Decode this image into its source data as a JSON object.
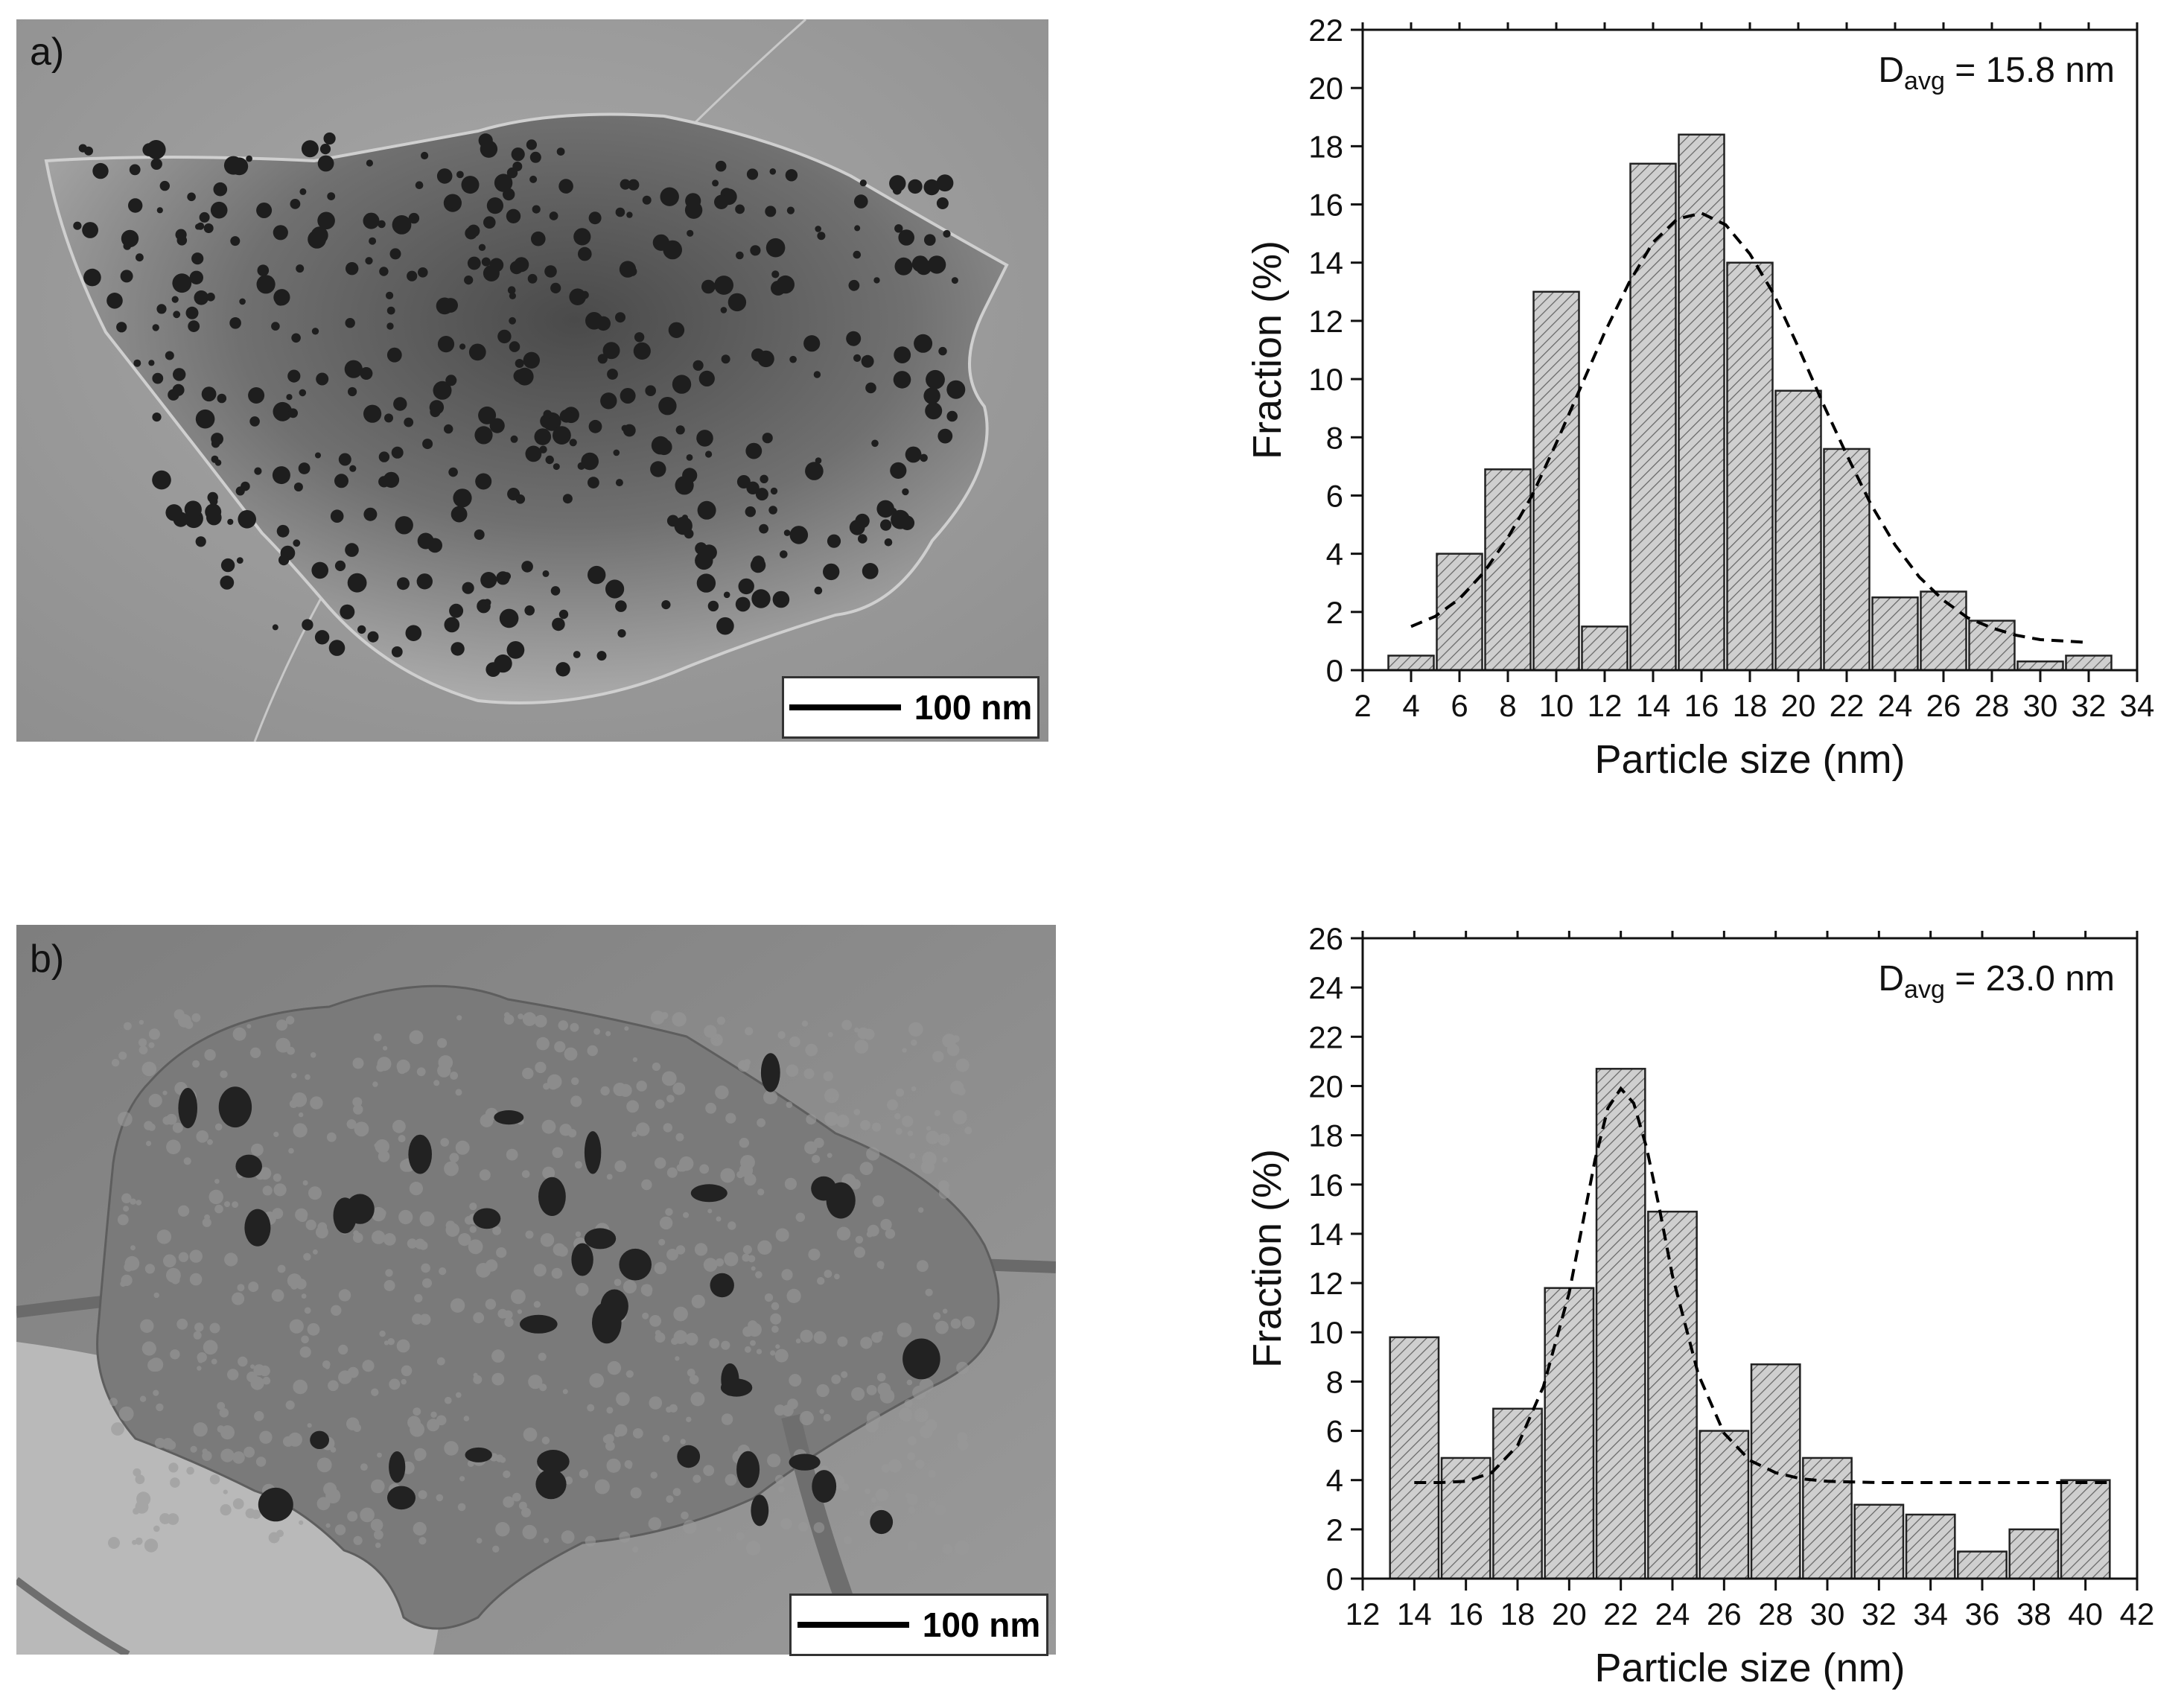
{
  "panels": [
    {
      "label": "a)",
      "scale_bar": "100 nm",
      "annotation": {
        "main": "D",
        "sub": "avg",
        "rest": " = 15.8 nm"
      }
    },
    {
      "label": "b)",
      "scale_bar": "100 nm",
      "annotation": {
        "main": "D",
        "sub": "avg",
        "rest": " = 23.0 nm"
      }
    }
  ],
  "colors": {
    "bar_fill": "#cfcfcf",
    "bar_hatch": "#666666",
    "axis": "#111111",
    "fit_line": "#000000"
  },
  "chart_data": [
    {
      "type": "bar",
      "xlabel": "Particle size (nm)",
      "ylabel": "Fraction (%)",
      "xlim": [
        2,
        34
      ],
      "ylim": [
        0,
        22
      ],
      "xticks": [
        2,
        4,
        6,
        8,
        10,
        12,
        14,
        16,
        18,
        20,
        22,
        24,
        26,
        28,
        30,
        32,
        34
      ],
      "yticks": [
        0,
        2,
        4,
        6,
        8,
        10,
        12,
        14,
        16,
        18,
        20,
        22
      ],
      "bin_width": 2,
      "bin_centers": [
        4,
        6,
        8,
        10,
        12,
        14,
        16,
        18,
        20,
        22,
        24,
        26,
        28,
        30,
        32
      ],
      "values": [
        0.5,
        4.0,
        6.9,
        13.0,
        1.5,
        17.4,
        18.4,
        14.0,
        9.6,
        7.6,
        2.5,
        2.7,
        1.7,
        0.3,
        0.5
      ],
      "fit_curve": {
        "type": "gaussian-dashed",
        "x": [
          4,
          5,
          6,
          7,
          8,
          9,
          10,
          11,
          12,
          13,
          14,
          15,
          16,
          17,
          18,
          19,
          20,
          21,
          22,
          23,
          24,
          25,
          26,
          27,
          28,
          29,
          30,
          31,
          32
        ],
        "y": [
          1.5,
          1.85,
          2.45,
          3.35,
          4.55,
          6.0,
          7.8,
          9.7,
          11.6,
          13.3,
          14.7,
          15.5,
          15.7,
          15.3,
          14.3,
          12.9,
          11.1,
          9.2,
          7.4,
          5.7,
          4.3,
          3.2,
          2.4,
          1.8,
          1.45,
          1.2,
          1.05,
          1.0,
          0.95
        ]
      },
      "grid": false
    },
    {
      "type": "bar",
      "xlabel": "Particle size (nm)",
      "ylabel": "Fraction (%)",
      "xlim": [
        12,
        42
      ],
      "ylim": [
        0,
        26
      ],
      "xticks": [
        12,
        14,
        16,
        18,
        20,
        22,
        24,
        26,
        28,
        30,
        32,
        34,
        36,
        38,
        40,
        42
      ],
      "yticks": [
        0,
        2,
        4,
        6,
        8,
        10,
        12,
        14,
        16,
        18,
        20,
        22,
        24,
        26
      ],
      "bin_width": 2,
      "bin_centers": [
        14,
        16,
        18,
        20,
        22,
        24,
        26,
        28,
        30,
        32,
        34,
        36,
        38,
        40
      ],
      "values": [
        9.8,
        4.9,
        6.9,
        11.8,
        20.7,
        14.9,
        6.0,
        8.7,
        4.9,
        3.0,
        2.6,
        1.1,
        2.0,
        4.0
      ],
      "fit_curve": {
        "type": "gaussian-dashed",
        "x": [
          14,
          15,
          16,
          17,
          18,
          19,
          20,
          20.5,
          21,
          21.5,
          22,
          22.5,
          23,
          23.5,
          24,
          25,
          26,
          27,
          28,
          29,
          30,
          32,
          34,
          36,
          38,
          40,
          41
        ],
        "y": [
          3.9,
          3.9,
          3.95,
          4.3,
          5.4,
          7.8,
          11.6,
          14.3,
          17.0,
          19.1,
          19.9,
          19.3,
          17.5,
          15.0,
          12.3,
          8.3,
          5.9,
          4.8,
          4.3,
          4.05,
          3.95,
          3.9,
          3.9,
          3.9,
          3.9,
          3.9,
          3.9
        ]
      },
      "grid": false
    }
  ]
}
